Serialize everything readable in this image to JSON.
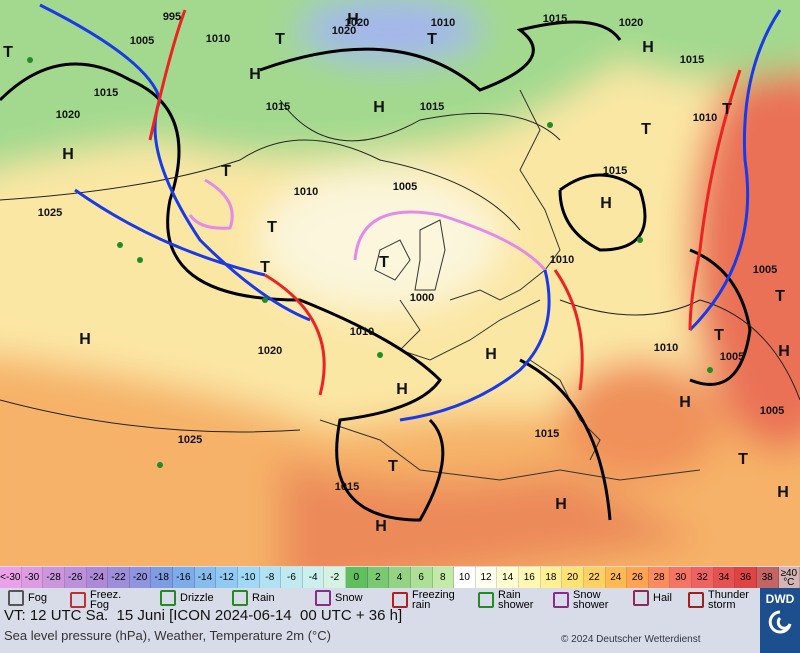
{
  "map": {
    "isobar_labels": [
      "995",
      "1020",
      "1010",
      "1015",
      "1020",
      "1005",
      "1010",
      "1020",
      "1015",
      "1015",
      "1015",
      "1015",
      "1020",
      "1010",
      "1015",
      "1005",
      "1010",
      "1025",
      "1010",
      "1005",
      "1000",
      "1010",
      "1020",
      "1010",
      "1005",
      "1005",
      "1025",
      "1015",
      "1015"
    ],
    "pressure_centers": [
      "H",
      "T",
      "H",
      "H",
      "T",
      "H",
      "H",
      "T",
      "T",
      "T",
      "H",
      "T",
      "T",
      "T",
      "H",
      "H",
      "H",
      "T",
      "H",
      "H",
      "H",
      "T",
      "H",
      "H",
      "T",
      "T",
      "T"
    ]
  },
  "legend": {
    "temperature_scale": [
      {
        "label": "<-30",
        "color": "#e9a2ea"
      },
      {
        "label": "-30",
        "color": "#dc9ce2"
      },
      {
        "label": "-28",
        "color": "#cc96dc"
      },
      {
        "label": "-26",
        "color": "#bc90da"
      },
      {
        "label": "-24",
        "color": "#ac8ad8"
      },
      {
        "label": "-22",
        "color": "#9c8ed8"
      },
      {
        "label": "-20",
        "color": "#8e94de"
      },
      {
        "label": "-18",
        "color": "#7e9ce2"
      },
      {
        "label": "-16",
        "color": "#7eace8"
      },
      {
        "label": "-14",
        "color": "#86bcee"
      },
      {
        "label": "-12",
        "color": "#90caf2"
      },
      {
        "label": "-10",
        "color": "#a0d8f6"
      },
      {
        "label": "-8",
        "color": "#b0e2f2"
      },
      {
        "label": "-6",
        "color": "#c0eaf0"
      },
      {
        "label": "-4",
        "color": "#ccf0ee"
      },
      {
        "label": "-2",
        "color": "#d6f2e2"
      },
      {
        "label": "0",
        "color": "#5fbf5f"
      },
      {
        "label": "2",
        "color": "#7ac872"
      },
      {
        "label": "4",
        "color": "#94d284"
      },
      {
        "label": "6",
        "color": "#ace096"
      },
      {
        "label": "8",
        "color": "#c4eaa8"
      },
      {
        "label": "10",
        "color": "#ffffff"
      },
      {
        "label": "12",
        "color": "#fffff0"
      },
      {
        "label": "14",
        "color": "#ffffd2"
      },
      {
        "label": "16",
        "color": "#fff8b4"
      },
      {
        "label": "18",
        "color": "#fff094"
      },
      {
        "label": "20",
        "color": "#ffe274"
      },
      {
        "label": "22",
        "color": "#ffd062"
      },
      {
        "label": "24",
        "color": "#ffba52"
      },
      {
        "label": "26",
        "color": "#ffa452"
      },
      {
        "label": "28",
        "color": "#fc8c60"
      },
      {
        "label": "30",
        "color": "#f67464"
      },
      {
        "label": "32",
        "color": "#ee6262"
      },
      {
        "label": "34",
        "color": "#e65252"
      },
      {
        "label": "36",
        "color": "#de4444"
      },
      {
        "label": "38",
        "color": "#c46464"
      },
      {
        "label": "≥40 °C",
        "color": "#d4b4b4"
      }
    ],
    "weather": [
      "Fog",
      "Freez. Fog",
      "Drizzle",
      "Rain",
      "Snow",
      "Freezing rain",
      "Rain shower",
      "Snow shower",
      "Hail",
      "Thunder storm"
    ]
  },
  "footer": {
    "valid_time": "VT: 12 UTC Sa.  15 Juni [ICON 2024-06-14  00 UTC + 36 h]",
    "description": "Sea level pressure (hPa), Weather, Temperature 2m (°C)",
    "copyright": "© 2024 Deutscher Wetterdienst",
    "logo": "DWD"
  }
}
